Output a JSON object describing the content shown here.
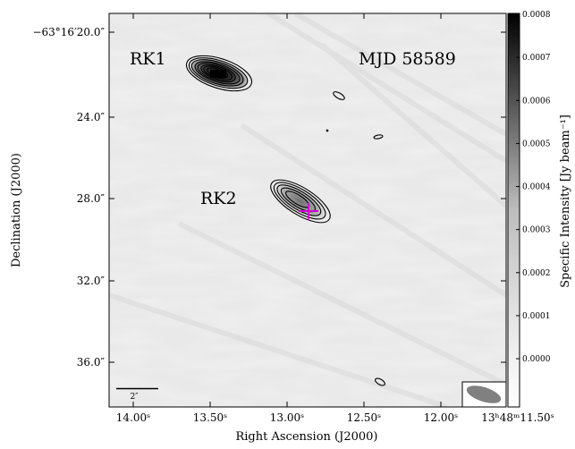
{
  "chart_data": {
    "type": "heatmap",
    "xlabel": "Right Ascension (J2000)",
    "ylabel": "Declination (J2000)",
    "x_ticks": [
      "14.00ˢ",
      "13.50ˢ",
      "13.00ˢ",
      "12.50ˢ",
      "12.00ˢ",
      "13ʰ48ᵐ11.50ˢ"
    ],
    "y_ticks": [
      "−63°16′20.0″",
      "24.0″",
      "28.0″",
      "32.0″",
      "36.0″"
    ],
    "annotations": {
      "source1": "RK1",
      "source2": "RK2",
      "epoch": "MJD 58589",
      "scalebar": "2″"
    },
    "colorbar": {
      "label": "Specific Intensity [Jy beam⁻¹]",
      "ticks": [
        "0.0008",
        "0.0007",
        "0.0006",
        "0.0005",
        "0.0004",
        "0.0003",
        "0.0002",
        "0.0001",
        "0.0000"
      ],
      "values": [
        0.0008,
        0.0007,
        0.0006,
        0.0005,
        0.0004,
        0.0003,
        0.0002,
        0.0001,
        0.0
      ],
      "range": [
        -0.00011,
        0.0008
      ],
      "colormap": "grayscale, white = low, black = high"
    },
    "sources": [
      {
        "name": "RK1",
        "ra_s": 13.42,
        "dec_offset_arcsec": 22.0,
        "peak": 0.0008,
        "contours": 8
      },
      {
        "name": "RK2",
        "ra_s": 12.88,
        "dec_offset_arcsec": 28.3,
        "peak": 0.0003,
        "contours": 5
      }
    ],
    "marker": {
      "shape": "cross",
      "color": "#d000d0",
      "ra_s": 12.79,
      "dec_offset_arcsec": 28.4
    },
    "beam": {
      "shape": "ellipse",
      "color": "#808080",
      "position": "bottom-right"
    },
    "colors": {
      "contour": "#000000",
      "marker": "#d000d0",
      "beam": "#808080"
    }
  }
}
